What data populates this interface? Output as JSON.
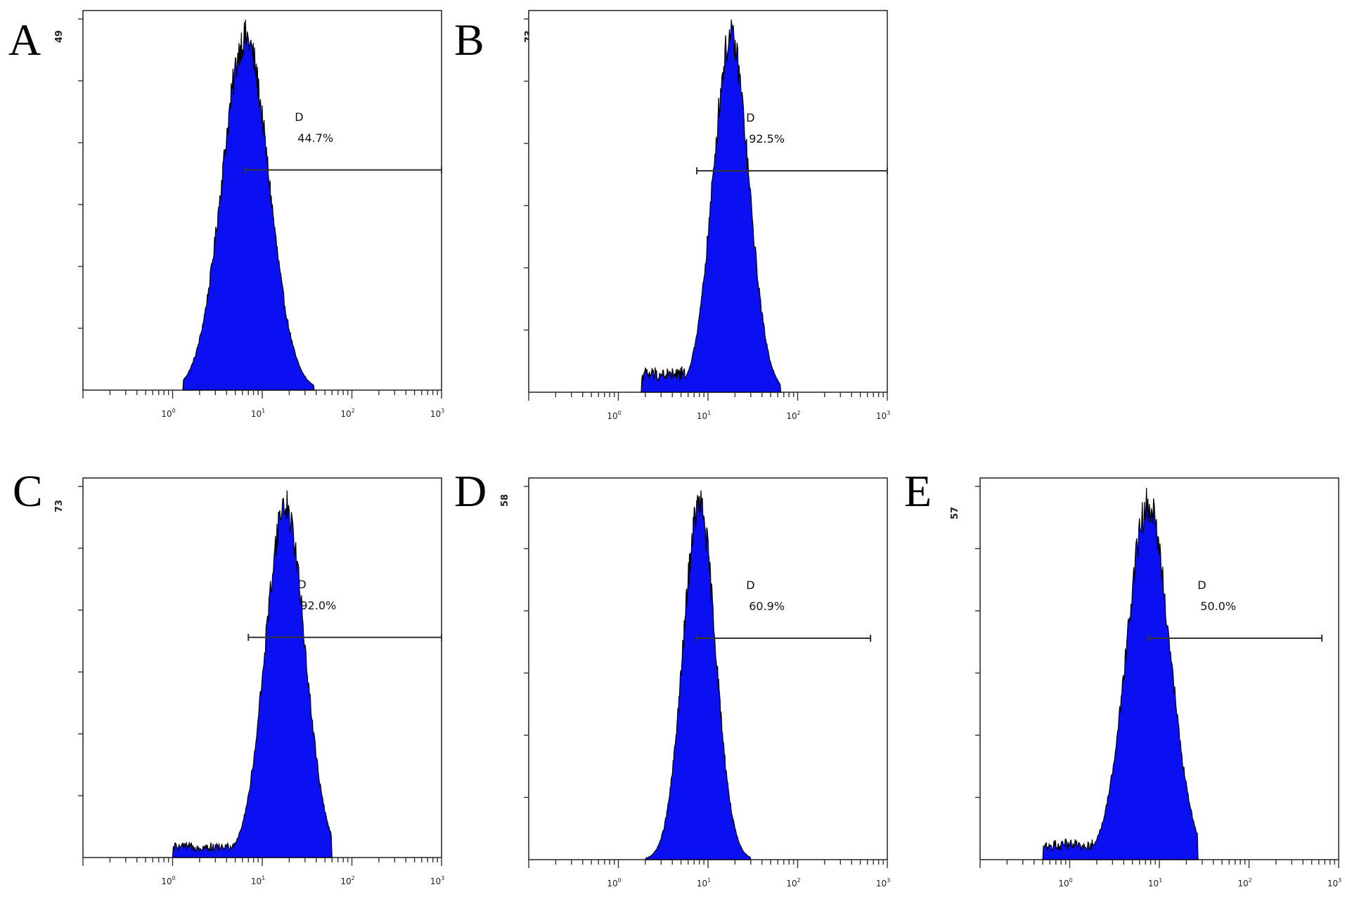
{
  "chart_data": [
    {
      "type": "histogram",
      "panel_label": "A",
      "y_max_label": "49",
      "x_axis": {
        "scale": "log",
        "range": [
          0.1,
          1000
        ],
        "tick_labels": [
          {
            "base": "10",
            "exp": "0"
          },
          {
            "base": "10",
            "exp": "1"
          },
          {
            "base": "10",
            "exp": "2"
          },
          {
            "base": "10",
            "exp": "3"
          }
        ]
      },
      "ylim": [
        0,
        49
      ],
      "gate": {
        "name": "D",
        "percent": "44.7%",
        "from": 6.5,
        "to": 1000
      },
      "distribution": {
        "peak_x": 6.5,
        "sigma_log10": 0.26,
        "start_x": 1.3,
        "end_x": 38,
        "tail": 0
      }
    },
    {
      "type": "histogram",
      "panel_label": "B",
      "y_max_label": "73",
      "x_axis": {
        "scale": "log",
        "range": [
          0.1,
          1000
        ],
        "tick_labels": [
          {
            "base": "10",
            "exp": "0"
          },
          {
            "base": "10",
            "exp": "1"
          },
          {
            "base": "10",
            "exp": "2"
          },
          {
            "base": "10",
            "exp": "3"
          }
        ]
      },
      "ylim": [
        0,
        73
      ],
      "gate": {
        "name": "D",
        "percent": "92.5%",
        "from": 7.5,
        "to": 1000
      },
      "distribution": {
        "peak_x": 18,
        "sigma_log10": 0.2,
        "start_x": 1.8,
        "end_x": 65,
        "tail": 0.05
      }
    },
    {
      "type": "histogram",
      "panel_label": "C",
      "y_max_label": "73",
      "x_axis": {
        "scale": "log",
        "range": [
          0.1,
          1000
        ],
        "tick_labels": [
          {
            "base": "10",
            "exp": "0"
          },
          {
            "base": "10",
            "exp": "1"
          },
          {
            "base": "10",
            "exp": "2"
          },
          {
            "base": "10",
            "exp": "3"
          }
        ]
      },
      "ylim": [
        0,
        73
      ],
      "gate": {
        "name": "D",
        "percent": "92.0%",
        "from": 7,
        "to": 1000
      },
      "distribution": {
        "peak_x": 18,
        "sigma_log10": 0.22,
        "start_x": 1.0,
        "end_x": 60,
        "tail": 0.03
      }
    },
    {
      "type": "histogram",
      "panel_label": "D",
      "y_max_label": "58",
      "x_axis": {
        "scale": "log",
        "range": [
          0.1,
          1000
        ],
        "tick_labels": [
          {
            "base": "10",
            "exp": "0"
          },
          {
            "base": "10",
            "exp": "1"
          },
          {
            "base": "10",
            "exp": "2"
          },
          {
            "base": "10",
            "exp": "3"
          }
        ]
      },
      "ylim": [
        0,
        58
      ],
      "gate": {
        "name": "D",
        "percent": "60.9%",
        "from": 7.5,
        "to": 650
      },
      "distribution": {
        "peak_x": 8,
        "sigma_log10": 0.18,
        "start_x": 2.0,
        "end_x": 30,
        "tail": 0
      }
    },
    {
      "type": "histogram",
      "panel_label": "E",
      "y_max_label": "57",
      "x_axis": {
        "scale": "log",
        "range": [
          0.1,
          1000
        ],
        "tick_labels": [
          {
            "base": "10",
            "exp": "0"
          },
          {
            "base": "10",
            "exp": "1"
          },
          {
            "base": "10",
            "exp": "2"
          },
          {
            "base": "10",
            "exp": "3"
          }
        ]
      },
      "ylim": [
        0,
        57
      ],
      "gate": {
        "name": "D",
        "percent": "50.0%",
        "from": 7.5,
        "to": 650
      },
      "distribution": {
        "peak_x": 7.5,
        "sigma_log10": 0.24,
        "start_x": 0.5,
        "end_x": 27,
        "tail": 0.04
      }
    }
  ],
  "colors": {
    "histogram_fill": "#0a10f2",
    "histogram_edge": "#000000",
    "frame": "#222222"
  }
}
